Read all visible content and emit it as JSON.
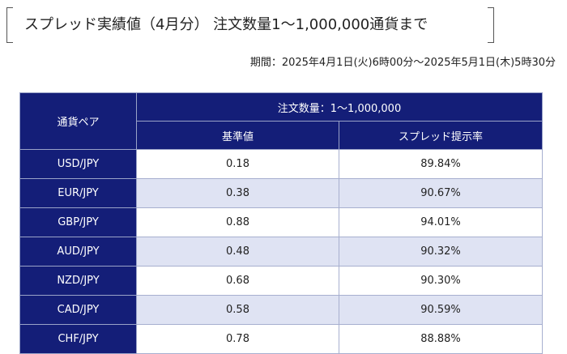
{
  "title": "スプレッド実績値（4月分） 注文数量1〜1,000,000通貨まで",
  "period": "期間：2025年4月1日(火)6時00分〜2025年5月1日(木)5時30分",
  "table": {
    "col_pair": "通貨ペア",
    "col_group": "注文数量：1〜1,000,000",
    "col_base": "基準値",
    "col_rate": "スプレッド提示率",
    "rows": [
      {
        "pair": "USD/JPY",
        "base": "0.18",
        "rate": "89.84%"
      },
      {
        "pair": "EUR/JPY",
        "base": "0.38",
        "rate": "90.67%"
      },
      {
        "pair": "GBP/JPY",
        "base": "0.88",
        "rate": "94.01%"
      },
      {
        "pair": "AUD/JPY",
        "base": "0.48",
        "rate": "90.32%"
      },
      {
        "pair": "NZD/JPY",
        "base": "0.68",
        "rate": "90.30%"
      },
      {
        "pair": "CAD/JPY",
        "base": "0.58",
        "rate": "90.59%"
      },
      {
        "pair": "CHF/JPY",
        "base": "0.78",
        "rate": "88.88%"
      }
    ]
  },
  "colors": {
    "header_bg": "#141e78",
    "alt_row_bg": "#dfe3f3"
  }
}
